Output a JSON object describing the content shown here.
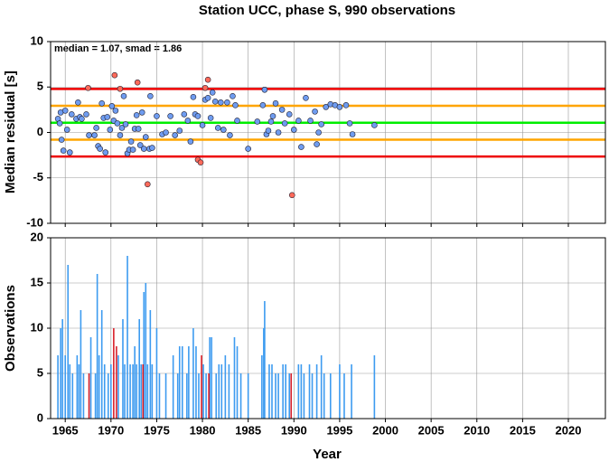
{
  "chart_data": [
    {
      "type": "scatter",
      "title": "Station UCC, phase S, 990 observations",
      "ylabel": "Median residual [s]",
      "annotation": "median = 1.07, smad = 1.86",
      "xlim": [
        1963.4,
        2024.05
      ],
      "xticks": [
        1965,
        1970,
        1975,
        1980,
        1985,
        1990,
        1995,
        2000,
        2005,
        2010,
        2015,
        2020
      ],
      "ylim": [
        -10,
        10
      ],
      "yticks": [
        -10,
        -5,
        0,
        5,
        10
      ],
      "grid": true,
      "hlines": [
        {
          "value": 4.79,
          "color": "#ee0000"
        },
        {
          "value": -2.65,
          "color": "#ee0000"
        },
        {
          "value": 2.93,
          "color": "#ffa500"
        },
        {
          "value": -0.79,
          "color": "#ffa500"
        },
        {
          "value": 1.07,
          "color": "#00ee00"
        }
      ],
      "series": [
        {
          "color": "#6f9cf0",
          "x": [
            1964.2,
            1964.4,
            1964.5,
            1964.6,
            1964.8,
            1965.0,
            1965.2,
            1965.5,
            1965.7,
            1966.2,
            1966.4,
            1966.6,
            1966.8,
            1967.3,
            1967.6,
            1968.2,
            1968.4,
            1968.6,
            1968.8,
            1969.0,
            1969.2,
            1969.4,
            1969.6,
            1969.9,
            1970.1,
            1970.3,
            1970.5,
            1970.7,
            1971.0,
            1971.2,
            1971.4,
            1971.6,
            1971.8,
            1972.0,
            1972.2,
            1972.4,
            1972.6,
            1972.8,
            1973.0,
            1973.2,
            1973.4,
            1973.6,
            1973.8,
            1974.2,
            1974.3,
            1974.5,
            1975.0,
            1975.6,
            1976.0,
            1976.5,
            1977.0,
            1977.5,
            1978.0,
            1978.4,
            1978.7,
            1979.0,
            1979.2,
            1979.5,
            1980.0,
            1980.3,
            1980.6,
            1980.9,
            1981.1,
            1981.4,
            1981.7,
            1982.0,
            1982.3,
            1982.7,
            1983.0,
            1983.3,
            1983.6,
            1983.8,
            1985.0,
            1986.0,
            1986.6,
            1986.8,
            1987.0,
            1987.2,
            1987.5,
            1987.7,
            1988.0,
            1988.3,
            1988.7,
            1989.0,
            1989.5,
            1990.0,
            1990.5,
            1990.8,
            1991.3,
            1991.8,
            1992.3,
            1992.5,
            1992.7,
            1993.0,
            1993.5,
            1994.0,
            1994.5,
            1995.0,
            1995.7,
            1996.1,
            1996.4,
            1998.8
          ],
          "values": [
            1.5,
            1.0,
            2.2,
            -0.8,
            -2.0,
            2.4,
            0.3,
            -2.2,
            2.0,
            1.5,
            3.3,
            1.7,
            1.5,
            2.0,
            -0.3,
            -0.3,
            0.5,
            -1.5,
            -1.8,
            3.2,
            1.6,
            -2.2,
            1.7,
            0.3,
            2.9,
            1.3,
            2.4,
            1.0,
            -0.3,
            0.5,
            4.0,
            0.9,
            -2.3,
            -1.9,
            -1.0,
            -1.9,
            0.4,
            1.9,
            0.4,
            -1.4,
            2.2,
            -1.8,
            -0.5,
            -1.8,
            4.0,
            -1.7,
            1.8,
            -0.2,
            0.0,
            1.8,
            -0.3,
            0.2,
            2.0,
            1.3,
            -1.0,
            3.9,
            2.0,
            1.8,
            0.8,
            3.6,
            3.8,
            1.6,
            4.4,
            3.4,
            0.5,
            3.3,
            0.3,
            3.3,
            -0.3,
            4.0,
            3.0,
            1.3,
            -1.8,
            1.2,
            3.0,
            4.7,
            -0.2,
            0.2,
            1.2,
            1.8,
            3.2,
            0.0,
            2.5,
            1.0,
            2.0,
            0.3,
            1.3,
            -1.6,
            3.8,
            1.3,
            2.3,
            -1.3,
            0.0,
            0.9,
            2.8,
            3.1,
            3.0,
            2.8,
            3.0,
            1.0,
            -0.2,
            0.8
          ]
        },
        {
          "color": "#ff6a5a",
          "x": [
            1967.5,
            1970.4,
            1971.0,
            1972.9,
            1974.0,
            1979.5,
            1979.8,
            1980.3,
            1980.6,
            1989.8
          ],
          "values": [
            4.9,
            6.3,
            4.8,
            5.5,
            -5.7,
            -3.0,
            -3.3,
            4.9,
            5.8,
            -6.9
          ]
        }
      ]
    },
    {
      "type": "bar",
      "ylabel": "Observations",
      "xlabel": "Year",
      "xlim": [
        1963.4,
        2024.05
      ],
      "xticks": [
        1965,
        1970,
        1975,
        1980,
        1985,
        1990,
        1995,
        2000,
        2005,
        2010,
        2015,
        2020
      ],
      "ylim": [
        0,
        20
      ],
      "yticks": [
        0,
        5,
        10,
        15,
        20
      ],
      "grid": true,
      "series": [
        {
          "color": "#3d9bf0",
          "x": [
            1964.2,
            1964.5,
            1964.7,
            1965.0,
            1965.3,
            1965.5,
            1965.8,
            1966.3,
            1966.5,
            1966.7,
            1967.0,
            1967.8,
            1968.3,
            1968.5,
            1968.7,
            1969.0,
            1969.3,
            1969.7,
            1970.0,
            1970.8,
            1971.3,
            1971.5,
            1971.8,
            1972.1,
            1972.4,
            1972.6,
            1972.8,
            1973.1,
            1973.3,
            1973.6,
            1973.8,
            1974.0,
            1974.3,
            1974.5,
            1975.0,
            1975.3,
            1976.0,
            1976.8,
            1977.3,
            1977.5,
            1977.8,
            1978.3,
            1978.5,
            1979.0,
            1979.3,
            1979.6,
            1980.1,
            1980.4,
            1980.8,
            1981.0,
            1981.5,
            1981.8,
            1982.1,
            1982.5,
            1982.9,
            1983.5,
            1983.8,
            1984.2,
            1985.0,
            1986.5,
            1986.7,
            1986.8,
            1987.3,
            1987.6,
            1988.0,
            1988.3,
            1988.8,
            1989.1,
            1989.5,
            1990.5,
            1990.8,
            1991.1,
            1991.7,
            1992.0,
            1992.5,
            1993.0,
            1993.3,
            1994.0,
            1995.0,
            1995.5,
            1996.3,
            1998.8
          ],
          "values": [
            7,
            10,
            11,
            7,
            17,
            6,
            5,
            7,
            6,
            12,
            5,
            9,
            5,
            16,
            7,
            12,
            6,
            5,
            6,
            7,
            11,
            6,
            18,
            6,
            6,
            8,
            6,
            11,
            6,
            14,
            15,
            6,
            12,
            6,
            10,
            5,
            5,
            7,
            5,
            8,
            8,
            5,
            8,
            10,
            8,
            5,
            6,
            5,
            9,
            9,
            5,
            6,
            6,
            7,
            6,
            9,
            8,
            5,
            5,
            7,
            10,
            13,
            6,
            6,
            5,
            5,
            6,
            6,
            5,
            6,
            6,
            5,
            6,
            5,
            6,
            7,
            5,
            5,
            6,
            5,
            6,
            7
          ]
        },
        {
          "color": "#d8202a",
          "x": [
            1967.6,
            1970.3,
            1970.6,
            1973.5,
            1979.9,
            1980.7,
            1989.7
          ],
          "values": [
            5,
            10,
            8,
            6,
            7,
            5,
            5
          ]
        }
      ]
    }
  ]
}
